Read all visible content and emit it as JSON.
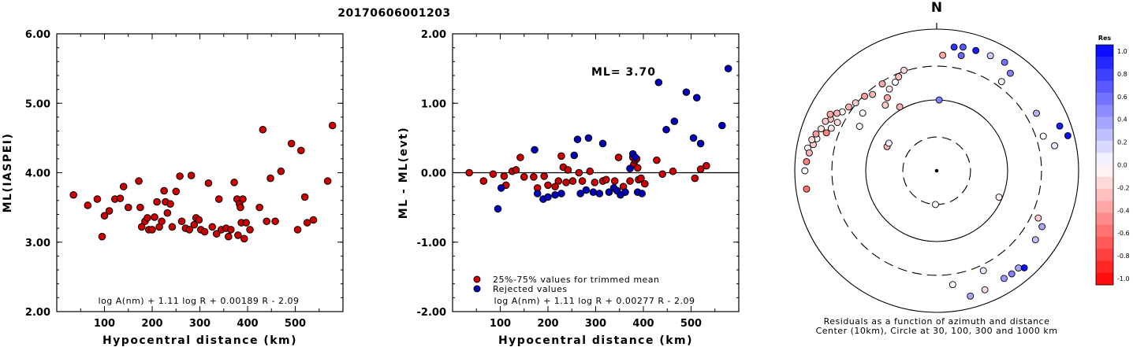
{
  "title": "20170606001203",
  "chart_data": [
    {
      "type": "scatter",
      "xlabel": "Hypocentral distance (km)",
      "ylabel": "ML(IASPEI)",
      "xlim": [
        0,
        600
      ],
      "ylim": [
        2.0,
        6.0
      ],
      "x_ticks": [
        "100",
        "200",
        "300",
        "400",
        "500"
      ],
      "y_ticks": [
        "2.00",
        "3.00",
        "4.00",
        "5.00",
        "6.00"
      ],
      "formula": "log A(nm) + 1.11 log R + 0.00189 R - 2.09",
      "color": "#cc0000",
      "points": [
        [
          35,
          3.68
        ],
        [
          65,
          3.53
        ],
        [
          85,
          3.62
        ],
        [
          95,
          3.08
        ],
        [
          100,
          3.38
        ],
        [
          110,
          3.45
        ],
        [
          122,
          3.62
        ],
        [
          133,
          3.63
        ],
        [
          140,
          3.8
        ],
        [
          150,
          3.5
        ],
        [
          172,
          3.88
        ],
        [
          175,
          3.5
        ],
        [
          178,
          3.22
        ],
        [
          185,
          3.3
        ],
        [
          190,
          3.35
        ],
        [
          193,
          3.18
        ],
        [
          200,
          3.18
        ],
        [
          205,
          3.36
        ],
        [
          210,
          3.58
        ],
        [
          215,
          3.22
        ],
        [
          220,
          3.3
        ],
        [
          225,
          3.74
        ],
        [
          228,
          3.58
        ],
        [
          232,
          3.42
        ],
        [
          238,
          3.55
        ],
        [
          242,
          3.22
        ],
        [
          250,
          3.73
        ],
        [
          258,
          3.95
        ],
        [
          262,
          3.3
        ],
        [
          270,
          3.2
        ],
        [
          278,
          3.18
        ],
        [
          282,
          3.96
        ],
        [
          288,
          3.25
        ],
        [
          292,
          3.35
        ],
        [
          298,
          3.32
        ],
        [
          302,
          3.18
        ],
        [
          310,
          3.15
        ],
        [
          318,
          3.85
        ],
        [
          326,
          3.22
        ],
        [
          335,
          3.12
        ],
        [
          340,
          3.62
        ],
        [
          345,
          3.18
        ],
        [
          355,
          3.2
        ],
        [
          360,
          3.08
        ],
        [
          365,
          3.18
        ],
        [
          372,
          3.86
        ],
        [
          378,
          3.62
        ],
        [
          380,
          3.1
        ],
        [
          383,
          3.55
        ],
        [
          385,
          3.5
        ],
        [
          387,
          3.28
        ],
        [
          390,
          3.62
        ],
        [
          393,
          3.05
        ],
        [
          397,
          3.28
        ],
        [
          405,
          3.18
        ],
        [
          425,
          3.5
        ],
        [
          432,
          4.62
        ],
        [
          440,
          3.3
        ],
        [
          448,
          3.92
        ],
        [
          458,
          3.3
        ],
        [
          470,
          4.02
        ],
        [
          492,
          4.42
        ],
        [
          505,
          3.18
        ],
        [
          512,
          4.32
        ],
        [
          520,
          3.65
        ],
        [
          525,
          3.28
        ],
        [
          538,
          3.32
        ],
        [
          568,
          3.88
        ],
        [
          578,
          4.68
        ]
      ]
    },
    {
      "type": "scatter",
      "xlabel": "Hypocentral distance (km)",
      "ylabel": "ML - ML(evt)",
      "xlim": [
        0,
        600
      ],
      "ylim": [
        -2.0,
        2.0
      ],
      "x_ticks": [
        "100",
        "200",
        "300",
        "400",
        "500"
      ],
      "y_ticks": [
        "-2.00",
        "-1.00",
        "0.00",
        "1.00",
        "2.00"
      ],
      "annotation": "ML= 3.70",
      "formula": "log A(nm) + 1.11 log R + 0.00277 R - 2.09",
      "legend": [
        {
          "label": "25%-75% values for trimmed mean",
          "color": "#cc0000"
        },
        {
          "label": "Rejected values",
          "color": "#0000bb"
        }
      ],
      "series": [
        {
          "name": "25%-75% values for trimmed mean",
          "color": "#cc0000",
          "points": [
            [
              35,
              0.0
            ],
            [
              65,
              -0.12
            ],
            [
              85,
              -0.02
            ],
            [
              108,
              -0.05
            ],
            [
              112,
              -0.18
            ],
            [
              125,
              0.02
            ],
            [
              133,
              0.04
            ],
            [
              142,
              0.22
            ],
            [
              150,
              -0.06
            ],
            [
              170,
              -0.06
            ],
            [
              178,
              -0.22
            ],
            [
              192,
              -0.05
            ],
            [
              200,
              -0.18
            ],
            [
              215,
              -0.2
            ],
            [
              222,
              -0.12
            ],
            [
              228,
              0.24
            ],
            [
              232,
              0.08
            ],
            [
              238,
              -0.14
            ],
            [
              242,
              0.04
            ],
            [
              252,
              -0.12
            ],
            [
              265,
              0.0
            ],
            [
              272,
              -0.12
            ],
            [
              288,
              0.02
            ],
            [
              298,
              -0.14
            ],
            [
              315,
              -0.12
            ],
            [
              322,
              -0.1
            ],
            [
              340,
              -0.12
            ],
            [
              348,
              0.22
            ],
            [
              358,
              -0.2
            ],
            [
              372,
              -0.12
            ],
            [
              378,
              0.22
            ],
            [
              380,
              0.12
            ],
            [
              383,
              0.18
            ],
            [
              386,
              0.2
            ],
            [
              388,
              0.07
            ],
            [
              390,
              -0.1
            ],
            [
              395,
              -0.08
            ],
            [
              403,
              -0.16
            ],
            [
              428,
              0.18
            ],
            [
              440,
              -0.02
            ],
            [
              462,
              0.02
            ],
            [
              508,
              -0.08
            ],
            [
              520,
              0.05
            ],
            [
              532,
              0.1
            ]
          ]
        },
        {
          "name": "Rejected values",
          "color": "#0000bb",
          "points": [
            [
              95,
              -0.52
            ],
            [
              102,
              -0.22
            ],
            [
              172,
              0.33
            ],
            [
              178,
              -0.3
            ],
            [
              190,
              -0.38
            ],
            [
              200,
              -0.35
            ],
            [
              215,
              -0.32
            ],
            [
              228,
              -0.3
            ],
            [
              255,
              0.25
            ],
            [
              262,
              0.48
            ],
            [
              268,
              -0.3
            ],
            [
              280,
              -0.25
            ],
            [
              285,
              0.5
            ],
            [
              295,
              -0.28
            ],
            [
              308,
              -0.3
            ],
            [
              315,
              0.42
            ],
            [
              328,
              -0.28
            ],
            [
              338,
              -0.22
            ],
            [
              345,
              -0.26
            ],
            [
              352,
              -0.32
            ],
            [
              362,
              -0.28
            ],
            [
              372,
              0.06
            ],
            [
              378,
              0.27
            ],
            [
              383,
              0.22
            ],
            [
              388,
              -0.28
            ],
            [
              397,
              -0.3
            ],
            [
              432,
              1.3
            ],
            [
              448,
              0.62
            ],
            [
              465,
              0.74
            ],
            [
              490,
              1.16
            ],
            [
              505,
              0.5
            ],
            [
              512,
              1.08
            ],
            [
              520,
              0.42
            ],
            [
              565,
              0.68
            ],
            [
              578,
              1.5
            ]
          ]
        }
      ]
    },
    {
      "type": "scatter",
      "subtype": "polar",
      "north_label": "N",
      "caption_line1": "Residuals as a function of azimuth and distance",
      "caption_line2": "Center (10km), Circle at 30, 100, 300 and 1000 km",
      "colorbar_title": "Res",
      "colorbar_ticks": [
        "1.0",
        "0.8",
        "0.6",
        "0.4",
        "0.2",
        "0.0",
        "-0.2",
        "-0.4",
        "-0.6",
        "-0.8",
        "-1.0"
      ],
      "rings": [
        {
          "label": "30 km",
          "style": "dashed"
        },
        {
          "label": "100 km",
          "style": "solid"
        },
        {
          "label": "300 km",
          "style": "dashed"
        },
        {
          "label": "1000 km",
          "style": "solid"
        }
      ],
      "points": [
        {
          "az": 182,
          "dist": 30,
          "res": 0.0
        },
        {
          "az": 296,
          "dist": 60,
          "res": -0.3
        },
        {
          "az": 113,
          "dist": 90,
          "res": -0.05
        },
        {
          "az": 2,
          "dist": 100,
          "res": 0.5
        },
        {
          "az": 300,
          "dist": 60,
          "res": 0.05
        },
        {
          "az": 3,
          "dist": 430,
          "res": -0.35
        },
        {
          "az": 330,
          "dist": 110,
          "res": -0.3
        },
        {
          "az": 300,
          "dist": 180,
          "res": -0.05
        },
        {
          "az": 308,
          "dist": 210,
          "res": 0.0
        },
        {
          "az": 322,
          "dist": 150,
          "res": -0.2
        },
        {
          "az": 326,
          "dist": 175,
          "res": -0.35
        },
        {
          "az": 330,
          "dist": 215,
          "res": -0.1
        },
        {
          "az": 335,
          "dist": 240,
          "res": 0.0
        },
        {
          "az": 338,
          "dist": 270,
          "res": -0.25
        },
        {
          "az": 342,
          "dist": 310,
          "res": -0.15
        },
        {
          "az": 328,
          "dist": 280,
          "res": -0.35
        },
        {
          "az": 320,
          "dist": 255,
          "res": -0.3
        },
        {
          "az": 316,
          "dist": 290,
          "res": -0.4
        },
        {
          "az": 310,
          "dist": 310,
          "res": -0.2
        },
        {
          "az": 306,
          "dist": 340,
          "res": -0.3
        },
        {
          "az": 302,
          "dist": 370,
          "res": 0.0
        },
        {
          "az": 296,
          "dist": 360,
          "res": -0.15
        },
        {
          "az": 292,
          "dist": 400,
          "res": -0.1
        },
        {
          "az": 300,
          "dist": 420,
          "res": -0.3
        },
        {
          "az": 296,
          "dist": 460,
          "res": -0.25
        },
        {
          "az": 289,
          "dist": 440,
          "res": -0.5
        },
        {
          "az": 294,
          "dist": 520,
          "res": -0.2
        },
        {
          "az": 290,
          "dist": 540,
          "res": -0.1
        },
        {
          "az": 298,
          "dist": 500,
          "res": -0.35
        },
        {
          "az": 285,
          "dist": 560,
          "res": 0.0
        },
        {
          "az": 287,
          "dist": 600,
          "res": -0.4
        },
        {
          "az": 282,
          "dist": 600,
          "res": -0.2
        },
        {
          "az": 284,
          "dist": 650,
          "res": -0.15
        },
        {
          "az": 280,
          "dist": 700,
          "res": 0.05
        },
        {
          "az": 278,
          "dist": 650,
          "res": -0.3
        },
        {
          "az": 274,
          "dist": 690,
          "res": -0.5
        },
        {
          "az": 270,
          "dist": 720,
          "res": 0.0
        },
        {
          "az": 262,
          "dist": 710,
          "res": -0.55
        },
        {
          "az": 8,
          "dist": 580,
          "res": 0.8
        },
        {
          "az": 12,
          "dist": 610,
          "res": 0.65
        },
        {
          "az": 18,
          "dist": 610,
          "res": 0.9
        },
        {
          "az": 25,
          "dist": 620,
          "res": 0.2
        },
        {
          "az": 32,
          "dist": 640,
          "res": 0.55
        },
        {
          "az": 37,
          "dist": 530,
          "res": 0.5
        },
        {
          "az": 36,
          "dist": 360,
          "res": 0.05
        },
        {
          "az": 12,
          "dist": 460,
          "res": 0.6
        },
        {
          "az": 60,
          "dist": 420,
          "res": 0.3
        },
        {
          "az": 72,
          "dist": 380,
          "res": 0.0
        },
        {
          "az": 78,
          "dist": 500,
          "res": 0.1
        },
        {
          "az": 70,
          "dist": 700,
          "res": 0.9
        },
        {
          "az": 75,
          "dist": 820,
          "res": 0.95
        },
        {
          "az": 115,
          "dist": 380,
          "res": -0.2
        },
        {
          "az": 118,
          "dist": 480,
          "res": 0.35
        },
        {
          "az": 125,
          "dist": 500,
          "res": 0.25
        },
        {
          "az": 155,
          "dist": 360,
          "res": 0.1
        },
        {
          "az": 172,
          "dist": 420,
          "res": 0.0
        },
        {
          "az": 148,
          "dist": 620,
          "res": 0.4
        },
        {
          "az": 144,
          "dist": 630,
          "res": 0.5
        },
        {
          "az": 140,
          "dist": 620,
          "res": 0.35
        },
        {
          "az": 138,
          "dist": 700,
          "res": 0.95
        },
        {
          "az": 158,
          "dist": 650,
          "res": -0.15
        },
        {
          "az": 165,
          "dist": 680,
          "res": 0.35
        }
      ]
    }
  ]
}
